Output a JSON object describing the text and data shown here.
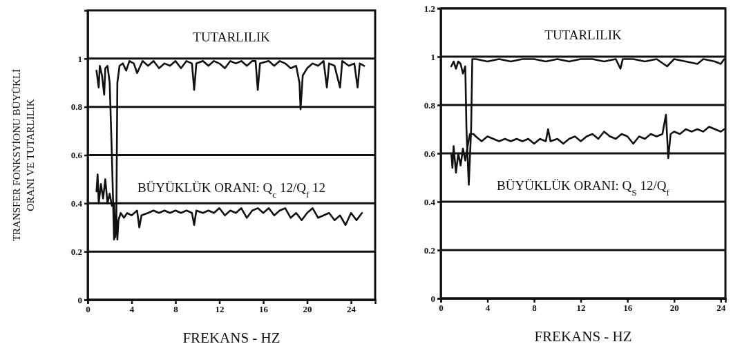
{
  "chart_data": [
    {
      "type": "line",
      "ylabel": "TRANSFER FONKSYİONU BÜYÜKLİ ORANI VE TUTARLILIK",
      "xlabel": "FREKANS - HZ",
      "xlim": [
        0,
        26.2
      ],
      "xticks": [
        0,
        4,
        8,
        12,
        16,
        20,
        24
      ],
      "ylim": [
        0,
        1.2
      ],
      "yticks": [
        0,
        0.2,
        0.4,
        0.6,
        0.8,
        1
      ],
      "grid": "y",
      "annotations": [
        "TUTARLILIK",
        "BÜYÜKLÜK ORANI: Q$_{c}$ 12/Q$_{f}$ 12"
      ],
      "series": [
        {
          "color": "#111111",
          "x": [
            0.8,
            1.0,
            1.1,
            1.3,
            1.5,
            1.6,
            1.8,
            2.0,
            2.2,
            2.4,
            2.6,
            2.7,
            2.9,
            3.2,
            3.5,
            3.8,
            4.2,
            4.5,
            5,
            5.5,
            6,
            6.5,
            7,
            7.5,
            8,
            8.5,
            9,
            9.5,
            9.7,
            9.9,
            10.5,
            11,
            11.5,
            12,
            12.5,
            13,
            13.5,
            14,
            14.5,
            15,
            15.3,
            15.5,
            15.7,
            16.5,
            17,
            17.5,
            18,
            18.5,
            19,
            19.3,
            19.4,
            19.6,
            20,
            20.5,
            21,
            21.5,
            21.8,
            22,
            22.5,
            23,
            23.2,
            23.8,
            24.3,
            24.6,
            24.8,
            25.2
          ],
          "values": [
            0.95,
            0.88,
            0.97,
            0.93,
            0.85,
            0.96,
            0.97,
            0.9,
            0.6,
            0.25,
            0.3,
            0.9,
            0.97,
            0.98,
            0.95,
            0.99,
            0.98,
            0.94,
            0.99,
            0.97,
            0.99,
            0.96,
            0.98,
            0.97,
            0.99,
            0.96,
            0.99,
            0.98,
            0.87,
            0.98,
            0.99,
            0.97,
            0.99,
            0.98,
            0.96,
            0.99,
            0.98,
            0.99,
            0.97,
            0.99,
            0.99,
            0.87,
            0.98,
            0.99,
            0.97,
            0.99,
            0.98,
            0.96,
            0.97,
            0.9,
            0.79,
            0.93,
            0.96,
            0.98,
            0.97,
            0.99,
            0.88,
            0.98,
            0.97,
            0.88,
            0.99,
            0.97,
            0.98,
            0.88,
            0.98,
            0.97
          ]
        },
        {
          "color": "#111111",
          "x": [
            0.8,
            0.9,
            1.0,
            1.2,
            1.4,
            1.6,
            1.8,
            2.0,
            2.2,
            2.4,
            2.5,
            2.6,
            2.7,
            2.8,
            3.0,
            3.3,
            3.6,
            4,
            4.5,
            4.7,
            4.9,
            5.5,
            6,
            6.5,
            7,
            7.5,
            8,
            8.5,
            9,
            9.5,
            9.7,
            9.9,
            10.5,
            11,
            11.5,
            12,
            12.5,
            13,
            13.5,
            14,
            14.5,
            15,
            15.5,
            16,
            16.5,
            17,
            17.5,
            18,
            18.5,
            19,
            19.5,
            20,
            20.5,
            21,
            21.5,
            22,
            22.5,
            23,
            23.5,
            24,
            24.5,
            25
          ],
          "values": [
            0.45,
            0.52,
            0.4,
            0.48,
            0.42,
            0.5,
            0.4,
            0.44,
            0.39,
            0.4,
            0.26,
            0.35,
            0.25,
            0.33,
            0.36,
            0.34,
            0.36,
            0.35,
            0.37,
            0.3,
            0.35,
            0.36,
            0.37,
            0.36,
            0.37,
            0.36,
            0.37,
            0.36,
            0.37,
            0.36,
            0.31,
            0.37,
            0.36,
            0.37,
            0.36,
            0.38,
            0.35,
            0.37,
            0.36,
            0.38,
            0.34,
            0.37,
            0.38,
            0.36,
            0.38,
            0.35,
            0.37,
            0.38,
            0.34,
            0.36,
            0.33,
            0.36,
            0.38,
            0.34,
            0.35,
            0.36,
            0.33,
            0.35,
            0.31,
            0.36,
            0.33,
            0.36
          ]
        }
      ]
    },
    {
      "type": "line",
      "xlabel": "FREKANS - HZ",
      "xlim": [
        0,
        24.4
      ],
      "xticks": [
        0,
        4,
        8,
        12,
        16,
        20,
        24
      ],
      "ylim": [
        0,
        1.2
      ],
      "yticks": [
        0,
        0.2,
        0.4,
        0.6,
        0.8,
        1,
        1.2
      ],
      "grid": "y",
      "annotations": [
        "TUTARLILIK",
        "BÜYÜKLÜK ORANI: Q$_{S}$ 12/Q$_{f}$"
      ],
      "series": [
        {
          "color": "#111111",
          "x": [
            0.9,
            1.1,
            1.3,
            1.5,
            1.7,
            1.9,
            2.1,
            2.2,
            2.4,
            2.6,
            2.7,
            3,
            4,
            5,
            6,
            7,
            8,
            9,
            10,
            11,
            12,
            13,
            14,
            15,
            15.4,
            15.6,
            16.5,
            17.5,
            18.5,
            19.4,
            19.6,
            20,
            21,
            22,
            22.5,
            23.5,
            24,
            24.3
          ],
          "values": [
            0.96,
            0.98,
            0.95,
            0.98,
            0.97,
            0.93,
            0.96,
            0.7,
            0.47,
            0.7,
            0.99,
            0.99,
            0.98,
            0.99,
            0.98,
            0.99,
            0.99,
            0.98,
            0.99,
            0.98,
            0.99,
            0.99,
            0.98,
            0.99,
            0.95,
            0.99,
            0.99,
            0.98,
            0.99,
            0.96,
            0.97,
            0.99,
            0.98,
            0.97,
            0.99,
            0.98,
            0.97,
            0.99
          ]
        },
        {
          "color": "#111111",
          "x": [
            0.9,
            1.0,
            1.1,
            1.3,
            1.5,
            1.7,
            1.9,
            2.1,
            2.3,
            2.5,
            2.8,
            3,
            3.5,
            4,
            4.5,
            5,
            5.5,
            6,
            6.5,
            7,
            7.5,
            8,
            8.5,
            9,
            9.2,
            9.4,
            10,
            10.5,
            11,
            11.5,
            12,
            12.5,
            13,
            13.5,
            14,
            14.5,
            15,
            15.5,
            16,
            16.5,
            17,
            17.5,
            18,
            18.5,
            19,
            19.3,
            19.5,
            19.7,
            20,
            20.5,
            21,
            21.5,
            22,
            22.5,
            23,
            23.5,
            24,
            24.3
          ],
          "values": [
            0.6,
            0.54,
            0.63,
            0.52,
            0.6,
            0.55,
            0.62,
            0.57,
            0.63,
            0.68,
            0.68,
            0.67,
            0.65,
            0.67,
            0.66,
            0.65,
            0.66,
            0.65,
            0.66,
            0.65,
            0.66,
            0.64,
            0.66,
            0.65,
            0.7,
            0.65,
            0.66,
            0.64,
            0.66,
            0.67,
            0.65,
            0.67,
            0.68,
            0.66,
            0.69,
            0.67,
            0.66,
            0.68,
            0.67,
            0.64,
            0.67,
            0.66,
            0.68,
            0.67,
            0.68,
            0.76,
            0.58,
            0.68,
            0.69,
            0.68,
            0.7,
            0.69,
            0.7,
            0.69,
            0.71,
            0.7,
            0.69,
            0.7
          ]
        }
      ]
    }
  ]
}
